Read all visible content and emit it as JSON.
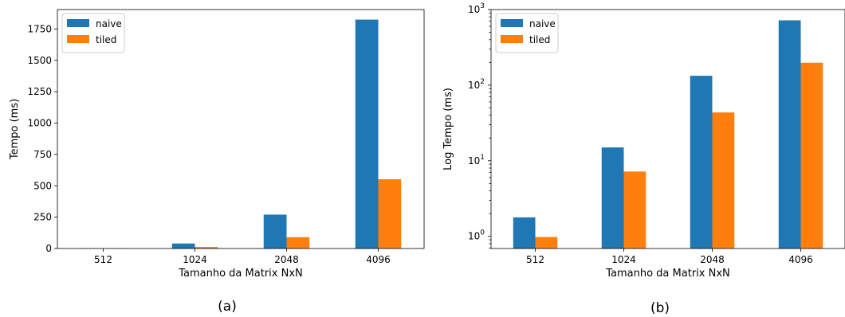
{
  "chart_data": [
    {
      "type": "bar",
      "caption": "(a)",
      "xlabel": "Tamanho da Matrix NxN",
      "ylabel": "Tempo (ms)",
      "categories": [
        "512",
        "1024",
        "2048",
        "4096"
      ],
      "ylim": [
        0,
        1905
      ],
      "yscale": "linear",
      "yticks": [
        0,
        250,
        500,
        750,
        1000,
        1250,
        1500,
        1750
      ],
      "legend_position": "top-left",
      "series": [
        {
          "name": "naive",
          "color": "#1f77b4",
          "values": [
            1.8,
            40,
            270,
            1825
          ]
        },
        {
          "name": "tiled",
          "color": "#ff7f0e",
          "values": [
            1.0,
            12,
            90,
            552
          ]
        }
      ]
    },
    {
      "type": "bar",
      "caption": "(b)",
      "xlabel": "Tamanho da Matrix NxN",
      "ylabel": "Log Tempo (ms)",
      "categories": [
        "512",
        "1024",
        "2048",
        "4096"
      ],
      "ylim": [
        0.69,
        1000
      ],
      "yscale": "log",
      "yticks": [
        1,
        10,
        100,
        1000
      ],
      "ytick_labels": [
        {
          "base": "10",
          "exp": "0"
        },
        {
          "base": "10",
          "exp": "1"
        },
        {
          "base": "10",
          "exp": "2"
        },
        {
          "base": "10",
          "exp": "3"
        }
      ],
      "legend_position": "top-left",
      "series": [
        {
          "name": "naive",
          "color": "#1f77b4",
          "values": [
            1.78,
            15,
            133,
            720
          ]
        },
        {
          "name": "tiled",
          "color": "#ff7f0e",
          "values": [
            0.98,
            7.2,
            43.5,
            198
          ]
        }
      ]
    }
  ]
}
